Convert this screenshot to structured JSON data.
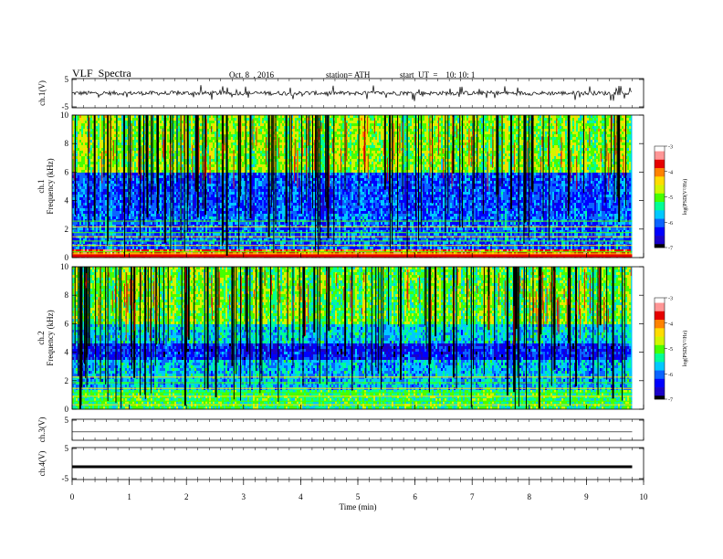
{
  "header": {
    "title": "VLF  Spectra",
    "date": "Oct. 8  , 2016",
    "station": "station= ATH",
    "start": "start  UT  =    10: 10: 1"
  },
  "chart_data": {
    "type": "heatmap",
    "x": {
      "label": "Time  (min)",
      "range": [
        0,
        10
      ],
      "ticks": [
        "0",
        "1",
        "2",
        "3",
        "4",
        "5",
        "6",
        "7",
        "8",
        "9",
        "10"
      ],
      "data_end": 9.8
    },
    "panels": [
      {
        "id": "ch1_waveform",
        "ylabel": "ch.1(V)",
        "ylim": [
          -5,
          5
        ],
        "ticks": [
          "5",
          "-5"
        ]
      },
      {
        "id": "ch1_spectrogram",
        "ylabel": "ch.1\nFrequency  (kHz)",
        "ylim": [
          0,
          10
        ],
        "ticks": [
          "0",
          "2",
          "4",
          "6",
          "8",
          "10"
        ],
        "colorbar": {
          "label": "log(PSD(V²/Hz)",
          "range": [
            -7,
            -3
          ],
          "ticks": [
            "-3",
            "-4",
            "-5",
            "-6",
            "-7"
          ]
        }
      },
      {
        "id": "ch2_spectrogram",
        "ylabel": "ch.2\nFrequency  (kHz)",
        "ylim": [
          0,
          10
        ],
        "ticks": [
          "0",
          "2",
          "4",
          "6",
          "8",
          "10"
        ],
        "colorbar": {
          "label": "log(PSD(V²/Hz)",
          "range": [
            -7,
            -3
          ],
          "ticks": [
            "-3",
            "-4",
            "-5",
            "-6",
            "-7"
          ]
        }
      },
      {
        "id": "ch3_waveform",
        "ylabel": "ch.3(V)",
        "ylim": [
          -5,
          5
        ],
        "ticks": [
          "5"
        ]
      },
      {
        "id": "ch4_waveform",
        "ylabel": "ch.4(V)",
        "ylim": [
          -5,
          5
        ],
        "ticks": [
          "5",
          "-5"
        ]
      }
    ],
    "colormap": [
      "#000000",
      "#1a00c8",
      "#0000ff",
      "#0a64ff",
      "#00c8ff",
      "#00ff96",
      "#46ff00",
      "#d2f500",
      "#ffdc00",
      "#ff8200",
      "#e60000",
      "#ff9696",
      "#ffffff"
    ]
  }
}
